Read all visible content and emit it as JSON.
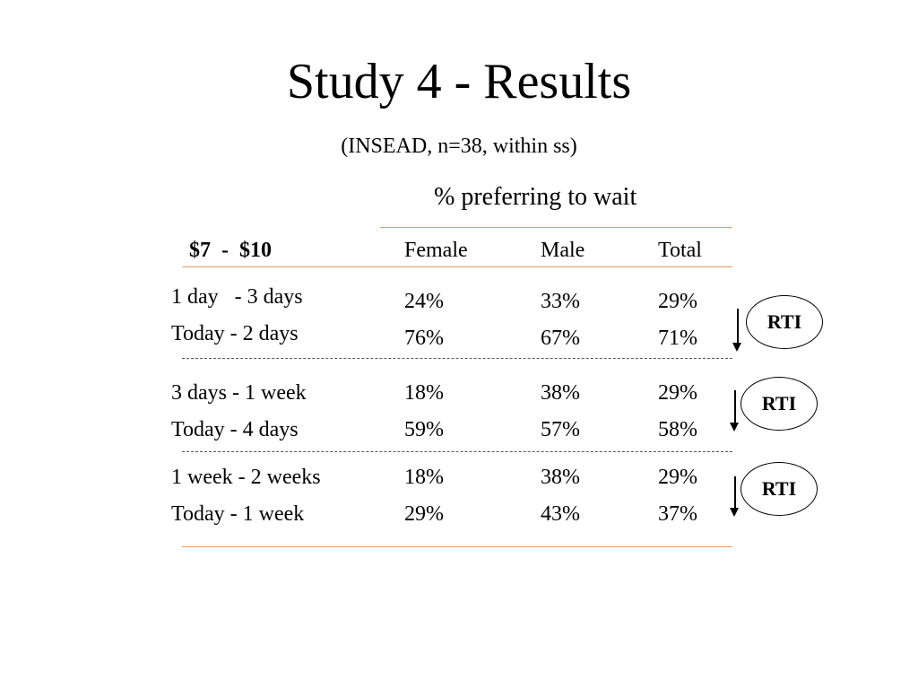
{
  "title": "Study 4 - Results",
  "subtitle": "(INSEAD, n=38, within ss)",
  "caption": "% preferring to wait",
  "table": {
    "range_label": "$7  -  $10",
    "columns": [
      "Female",
      "Male",
      "Total"
    ],
    "groups": [
      {
        "rows": [
          {
            "label": "1 day   - 3 days",
            "values": [
              "24%",
              "33%",
              "29%"
            ]
          },
          {
            "label": "Today - 2 days",
            "values": [
              "76%",
              "67%",
              "71%"
            ]
          }
        ],
        "badge": "RTI"
      },
      {
        "rows": [
          {
            "label": "3 days - 1 week",
            "values": [
              "18%",
              "38%",
              "29%"
            ]
          },
          {
            "label": "Today - 4 days",
            "values": [
              "59%",
              "57%",
              "58%"
            ]
          }
        ],
        "badge": "RTI"
      },
      {
        "rows": [
          {
            "label": "1 week - 2 weeks",
            "values": [
              "18%",
              "38%",
              "29%"
            ]
          },
          {
            "label": "Today - 1 week",
            "values": [
              "29%",
              "43%",
              "37%"
            ]
          }
        ],
        "badge": "RTI"
      }
    ]
  },
  "colors": {
    "rule": "#ee9560",
    "separator": "#555555"
  }
}
